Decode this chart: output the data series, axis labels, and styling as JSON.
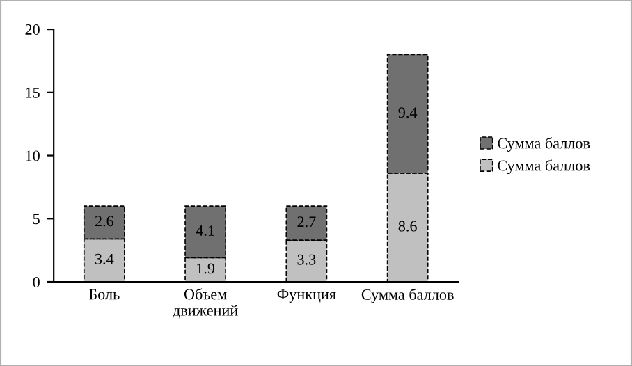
{
  "chart_data": {
    "type": "bar",
    "stacked": true,
    "categories": [
      "Боль",
      "Объем движений",
      "Функция",
      "Сумма баллов"
    ],
    "series": [
      {
        "name": "Сумма баллов",
        "color": "#c0c0c0",
        "values": [
          3.4,
          1.9,
          3.3,
          8.6
        ]
      },
      {
        "name": "Сумма баллов",
        "color": "#707070",
        "values": [
          2.6,
          4.1,
          2.7,
          9.4
        ]
      }
    ],
    "ylim": [
      0,
      20
    ],
    "yticks": [
      0,
      5,
      10,
      15,
      20
    ],
    "grid": false,
    "legend": "right",
    "data_labels": true
  }
}
